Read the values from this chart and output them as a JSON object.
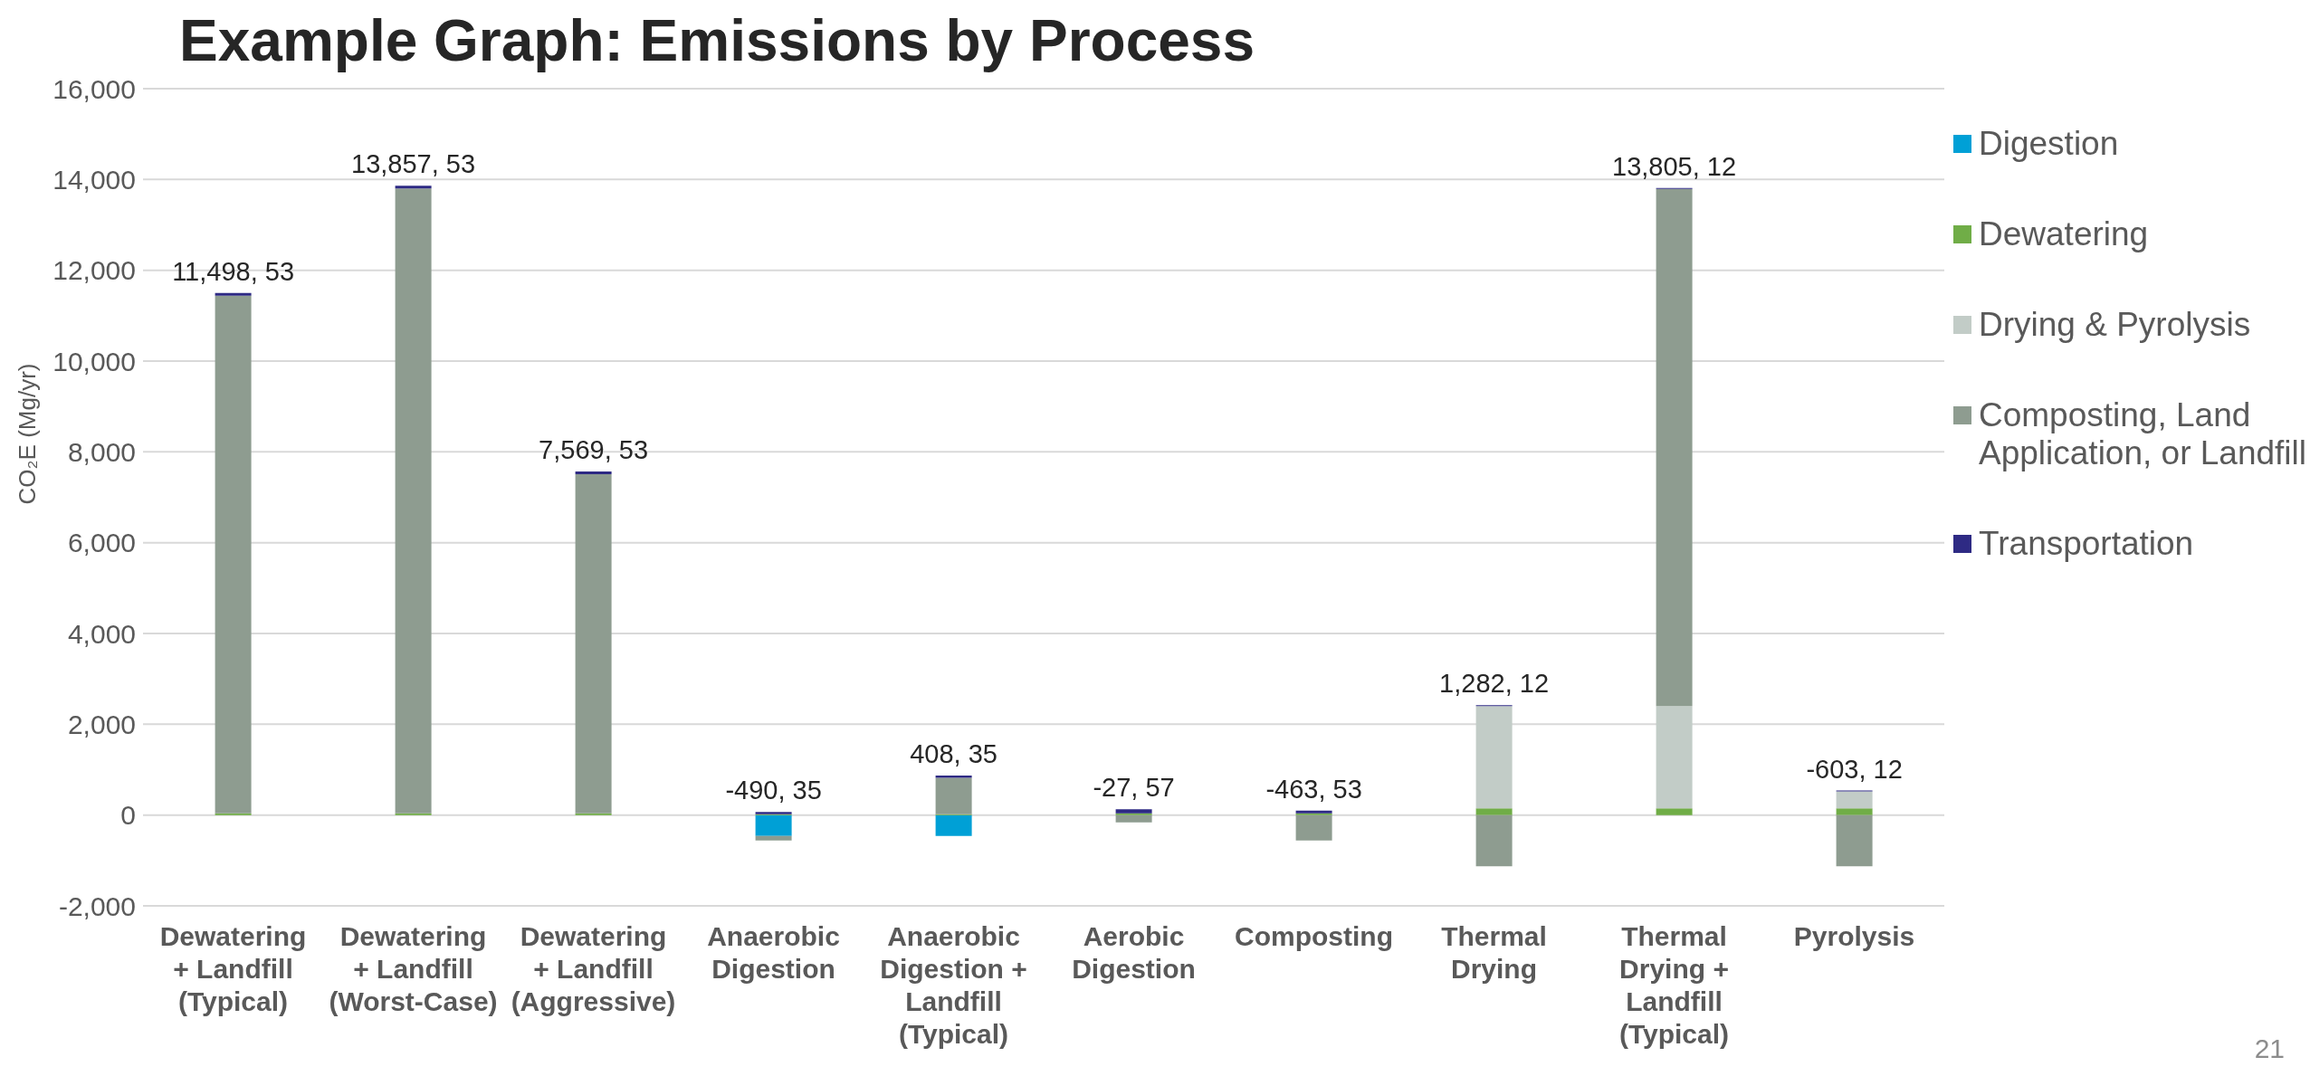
{
  "chart_data": {
    "type": "bar",
    "title": "Example Graph: Emissions by Process",
    "ylabel": "CO₂E (Mg/yr)",
    "stacked": true,
    "categories": [
      "Dewatering + Landfill (Typical)",
      "Dewatering + Landfill (Worst-Case)",
      "Dewatering + Landfill (Aggressive)",
      "Anaerobic Digestion",
      "Anaerobic Digestion + Landfill (Typical)",
      "Aerobic Digestion",
      "Composting",
      "Thermal Drying",
      "Thermal Drying + Landfill (Typical)",
      "Pyrolysis"
    ],
    "series": [
      {
        "name": "Digestion",
        "color": "#00a0d6",
        "values": [
          0,
          0,
          0,
          -460,
          -460,
          0,
          0,
          0,
          0,
          0
        ]
      },
      {
        "name": "Dewatering",
        "color": "#70ad47",
        "values": [
          40,
          40,
          40,
          20,
          20,
          40,
          40,
          150,
          150,
          150
        ]
      },
      {
        "name": "Drying & Pyrolysis",
        "color": "#c2ccc7",
        "values": [
          0,
          0,
          0,
          0,
          0,
          0,
          0,
          2250,
          2250,
          370
        ]
      },
      {
        "name": "Composting, Land Application, or Landfill",
        "color": "#8e9c90",
        "values": [
          11400,
          13760,
          7470,
          -100,
          800,
          -160,
          -560,
          -1130,
          11390,
          -1130
        ]
      },
      {
        "name": "Transportation",
        "color": "#2e2a84",
        "values": [
          60,
          60,
          60,
          50,
          50,
          90,
          60,
          20,
          20,
          20
        ]
      }
    ],
    "totals": [
      "11,498, 53",
      "13,857, 53",
      "7,569, 53",
      "-490, 35",
      "408, 35",
      "-27, 57",
      "-463, 53",
      "1,282, 12",
      "13,805, 12",
      "-603, 12"
    ],
    "ylim": [
      -2000,
      16000
    ],
    "yticks": [
      {
        "value": -2000,
        "label": "-2,000"
      },
      {
        "value": 0,
        "label": "0"
      },
      {
        "value": 2000,
        "label": "2,000"
      },
      {
        "value": 4000,
        "label": "4,000"
      },
      {
        "value": 6000,
        "label": "6,000"
      },
      {
        "value": 8000,
        "label": "8,000"
      },
      {
        "value": 10000,
        "label": "10,000"
      },
      {
        "value": 12000,
        "label": "12,000"
      },
      {
        "value": 14000,
        "label": "14,000"
      },
      {
        "value": 16000,
        "label": "16,000"
      }
    ],
    "grid": "y",
    "legend": "right",
    "annotations": [
      "21"
    ]
  }
}
